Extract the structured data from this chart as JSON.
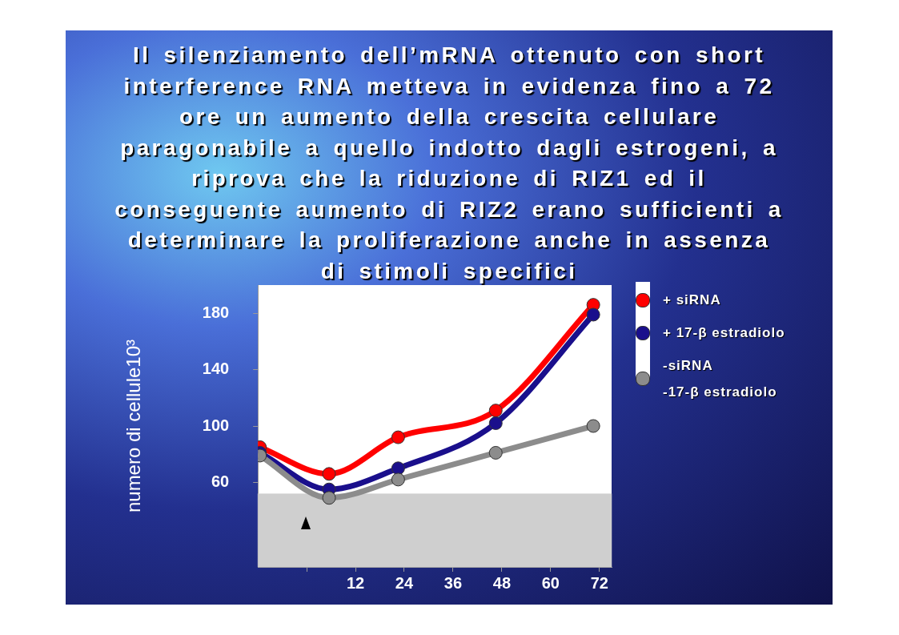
{
  "chart_data": {
    "type": "line",
    "title": "Il silenziamento dell’mRNA ottenuto con short interference RNA metteva in evidenza fino a 72 ore un aumento della crescita cellulare paragonabile a quello indotto dagli estrogeni, a riprova che la riduzione di RIZ1 ed il conseguente aumento di RIZ2 erano sufficienti a determinare la proliferazione anche in assenza di stimoli specifici",
    "ylabel": "numero di cellule10³",
    "x": [
      -11.5,
      5.5,
      22.5,
      46.5,
      70.5
    ],
    "series": [
      {
        "name": "+ siRNA",
        "color": "#ff0000",
        "values": [
          85,
          66,
          92,
          111,
          186
        ]
      },
      {
        "name": "+ 17-β estradiolo",
        "color": "#1a0f8c",
        "values": [
          81,
          55,
          70,
          102,
          179
        ]
      },
      {
        "name": "-siRNA\n-17-β estradiolo",
        "color": "#8c8c8c",
        "values": [
          79,
          49,
          62,
          81,
          100
        ]
      }
    ],
    "xlim": [
      -12,
      75
    ],
    "xticks": [
      {
        "value": 0,
        "label": null
      },
      12,
      24,
      36,
      48,
      60,
      72
    ],
    "ylim": [
      0,
      200
    ],
    "yticks": [
      60,
      100,
      140,
      180
    ],
    "bands": [
      {
        "axis": "y",
        "from": 0,
        "to": 52,
        "color": "#cfcfcf"
      }
    ],
    "marker": "circle",
    "line_style": "solid",
    "legend": "right",
    "grid": false
  }
}
